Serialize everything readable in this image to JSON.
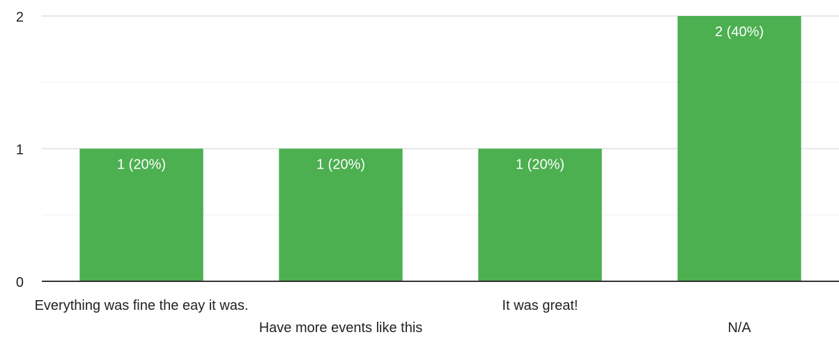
{
  "chart_data": {
    "type": "bar",
    "categories": [
      "Everything was fine the eay it was.",
      "Have more events like this",
      "It was great!",
      "N/A"
    ],
    "values": [
      1,
      1,
      1,
      2
    ],
    "value_labels": [
      "1 (20%)",
      "1 (20%)",
      "1 (20%)",
      "2 (40%)"
    ],
    "ylim": [
      0,
      2
    ],
    "yticks": [
      0,
      1,
      2
    ],
    "grid": true,
    "minor_grid": true,
    "legend": "none",
    "bar_color": "#4caf50",
    "label_color": "#ffffff"
  }
}
